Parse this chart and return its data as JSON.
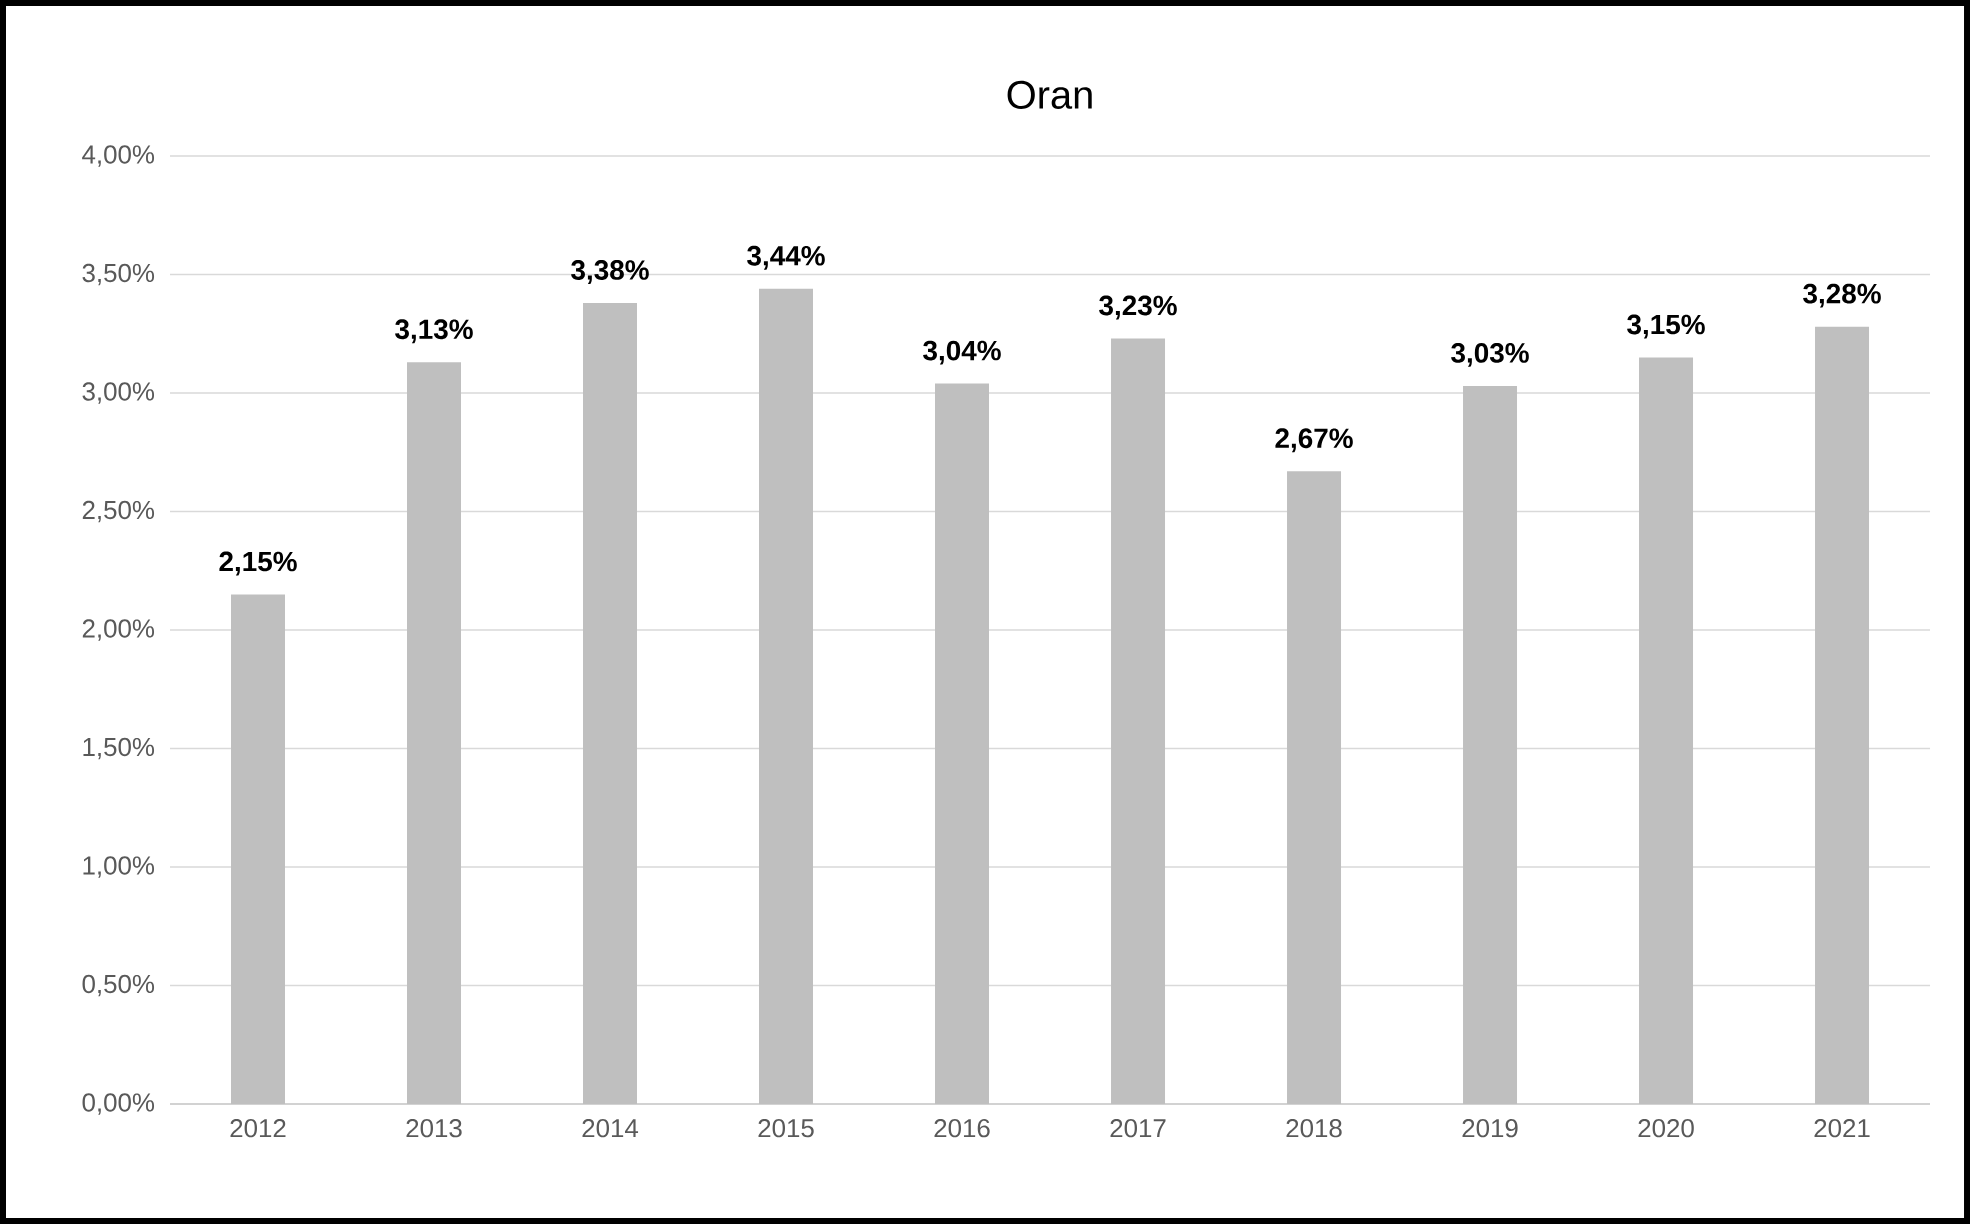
{
  "chart_data": {
    "type": "bar",
    "title": "Oran",
    "categories": [
      "2012",
      "2013",
      "2014",
      "2015",
      "2016",
      "2017",
      "2018",
      "2019",
      "2020",
      "2021"
    ],
    "values": [
      2.15,
      3.13,
      3.38,
      3.44,
      3.04,
      3.23,
      2.67,
      3.03,
      3.15,
      3.28
    ],
    "value_labels": [
      "2,15%",
      "3,13%",
      "3,38%",
      "3,44%",
      "3,04%",
      "3,23%",
      "2,67%",
      "3,03%",
      "3,15%",
      "3,28%"
    ],
    "color": "#bfbfbf",
    "ylim": [
      0,
      4
    ],
    "yticks": [
      {
        "value": 0,
        "label": "0,00%"
      },
      {
        "value": 0.5,
        "label": "0,50%"
      },
      {
        "value": 1,
        "label": "1,00%"
      },
      {
        "value": 1.5,
        "label": "1,50%"
      },
      {
        "value": 2,
        "label": "2,00%"
      },
      {
        "value": 2.5,
        "label": "2,50%"
      },
      {
        "value": 3,
        "label": "3,00%"
      },
      {
        "value": 3.5,
        "label": "3,50%"
      },
      {
        "value": 4,
        "label": "4,00%"
      }
    ],
    "grid": "y"
  }
}
